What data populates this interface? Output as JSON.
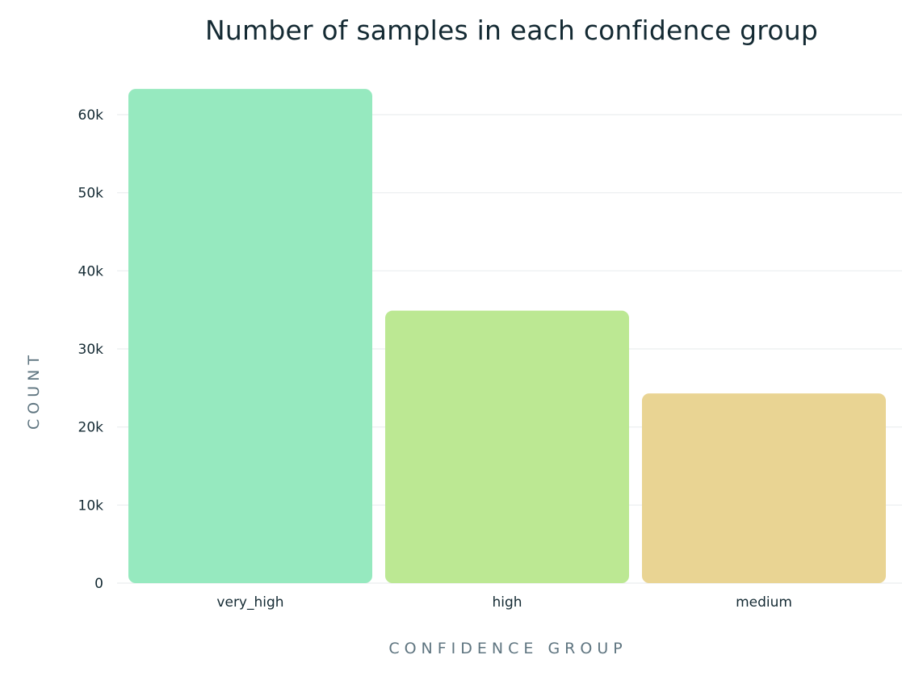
{
  "chart_data": {
    "type": "bar",
    "title": "Number of samples in each confidence group",
    "xlabel": "CONFIDENCE GROUP",
    "ylabel": "COUNT",
    "categories": [
      "very_high",
      "high",
      "medium"
    ],
    "values": [
      63300,
      34900,
      24300
    ],
    "ylim": [
      0,
      62000
    ],
    "yticks": [
      0,
      10000,
      20000,
      30000,
      40000,
      50000,
      60000
    ],
    "ytick_labels": [
      "0",
      "10k",
      "20k",
      "30k",
      "40k",
      "50k",
      "60k"
    ],
    "colors": [
      "#96e9bf",
      "#bce893",
      "#e9d493"
    ],
    "grid": true,
    "legend": "none"
  }
}
